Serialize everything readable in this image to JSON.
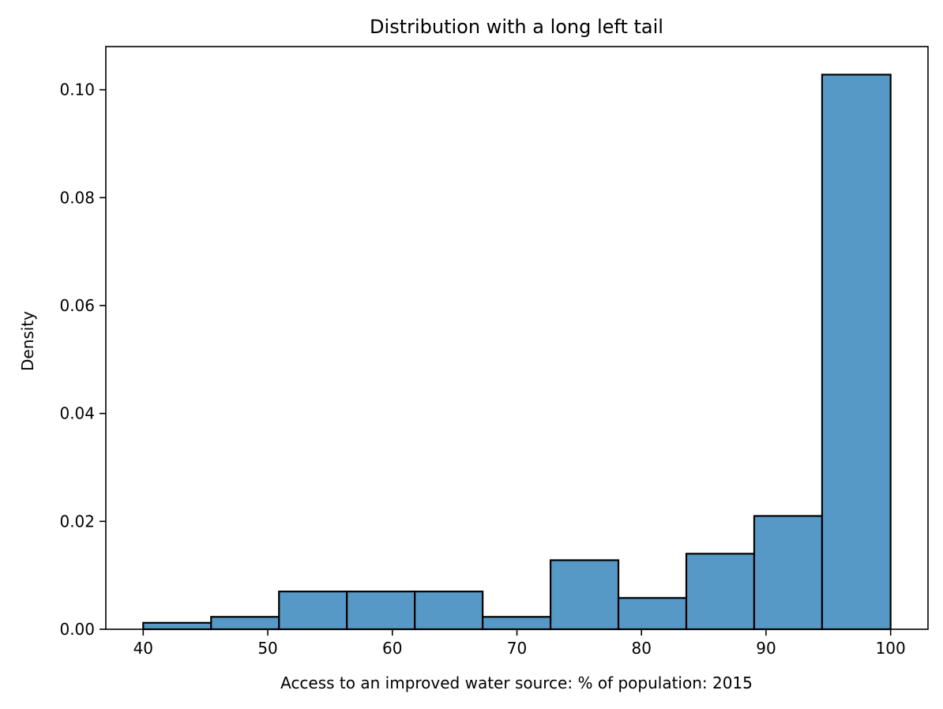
{
  "chart_data": {
    "type": "histogram",
    "title": "Distribution with a long left tail",
    "xlabel": "Access to an improved water source: % of population: 2015",
    "ylabel": "Density",
    "xlim": [
      37,
      103
    ],
    "ylim": [
      0,
      0.108
    ],
    "bar_color": "#5699c6",
    "edge_color": "#000000",
    "bin_edges": [
      40.0,
      45.45,
      50.9,
      56.35,
      61.8,
      67.25,
      72.7,
      78.15,
      83.6,
      89.05,
      94.5,
      100.0
    ],
    "values": [
      0.0012,
      0.0023,
      0.007,
      0.007,
      0.007,
      0.0023,
      0.0128,
      0.0058,
      0.014,
      0.021,
      0.1028
    ],
    "x_ticks": [
      40,
      50,
      60,
      70,
      80,
      90,
      100
    ],
    "x_tick_labels": [
      "40",
      "50",
      "60",
      "70",
      "80",
      "90",
      "100"
    ],
    "y_ticks": [
      0.0,
      0.02,
      0.04,
      0.06,
      0.08,
      0.1
    ],
    "y_tick_labels": [
      "0.00",
      "0.02",
      "0.04",
      "0.06",
      "0.08",
      "0.10"
    ],
    "grid": false,
    "legend": "none"
  }
}
